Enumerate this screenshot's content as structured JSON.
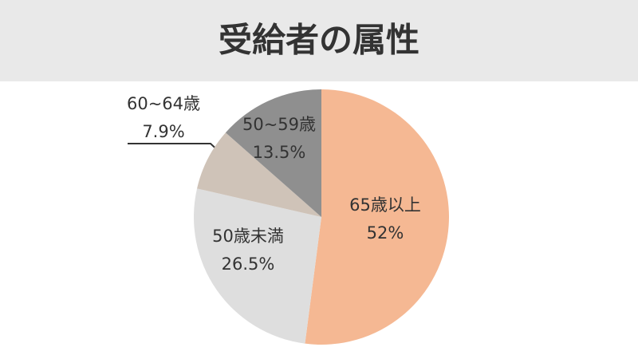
{
  "chart_data": {
    "type": "pie",
    "title": "受給者の属性",
    "categories": [
      "65歳以上",
      "50歳未満",
      "60~64歳",
      "50~59歳"
    ],
    "values": [
      52,
      26.5,
      7.9,
      13.5
    ],
    "value_labels": [
      "52%",
      "26.5%",
      "7.9%",
      "13.5%"
    ],
    "colors": [
      "#f5b893",
      "#dedede",
      "#cfc3b8",
      "#8f8f8f"
    ]
  }
}
